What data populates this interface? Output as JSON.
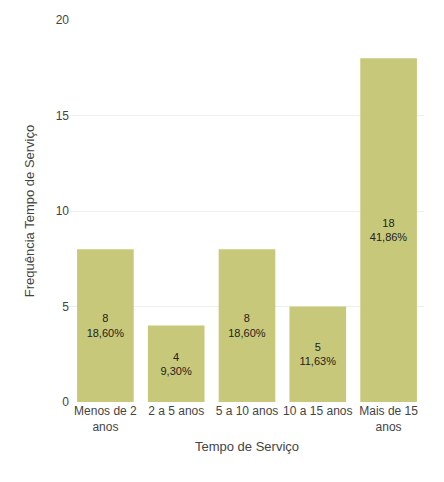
{
  "chart_data": {
    "type": "bar",
    "categories": [
      "Menos de 2\nanos",
      "2 a 5 anos",
      "5 a 10 anos",
      "10 a 15 anos",
      "Mais de 15\nanos"
    ],
    "values": [
      8,
      4,
      8,
      5,
      18
    ],
    "value_labels": [
      "8\n18,60%",
      "4\n9,30%",
      "8\n18,60%",
      "5\n11,63%",
      "18\n41,86%"
    ],
    "data_labels": true,
    "color": "#c8c87a",
    "xlabel": "Tempo de Serviço",
    "ylabel": "Frequência Tempo de Serviço",
    "ylim": [
      0,
      20
    ],
    "yticks": [
      0,
      5,
      10,
      15,
      20
    ],
    "grid": true
  }
}
